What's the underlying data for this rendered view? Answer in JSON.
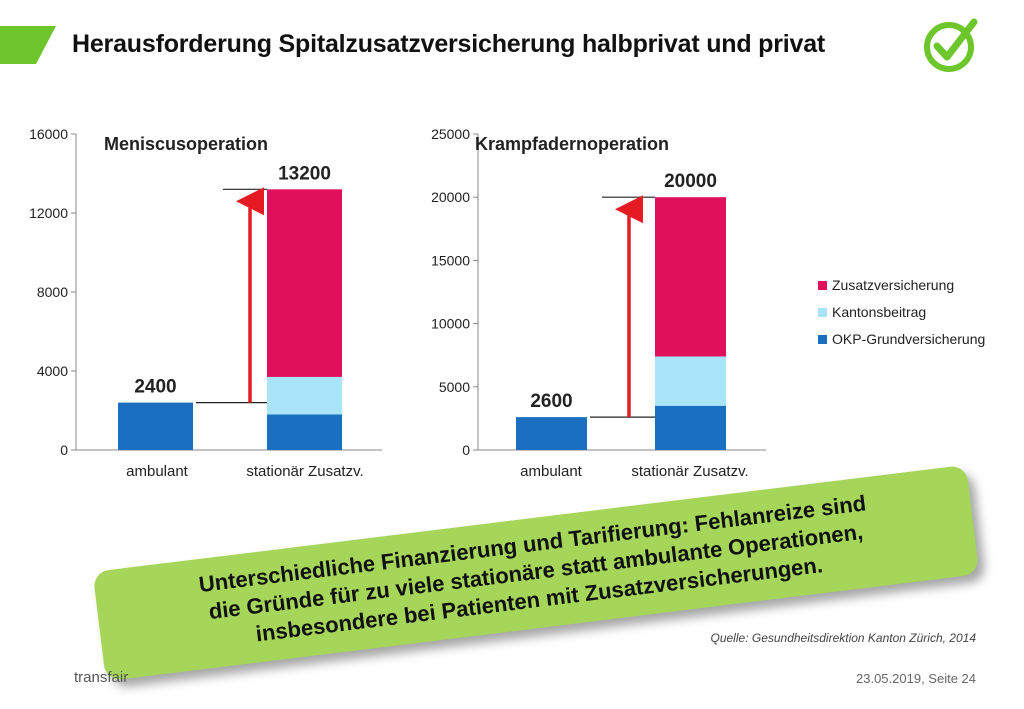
{
  "slide": {
    "title": "Herausforderung Spitalzusatzversicherung halbprivat und privat",
    "callout": [
      "Unterschiedliche Finanzierung und Tarifierung: Fehlanreize sind",
      "die Gründe für zu viele stationäre statt ambulante Operationen,",
      "insbesondere bei Patienten mit Zusatzversicherungen."
    ],
    "source": "Quelle: Gesundheitsdirektion Kanton Zürich, 2014",
    "brand": "transfair",
    "footer": "23.05.2019, Seite 24",
    "icons": [
      "green-tab-icon",
      "checkmark-icon"
    ]
  },
  "colors": {
    "accent_green": "#6cc62c",
    "callout_green": "#a5d65a",
    "Zusatzversicherung": "#e0105a",
    "Kantonsbeitrag": "#a8e4fa",
    "OKP-Grundversicherung": "#1a6fc0",
    "arrow": "#e51b24"
  },
  "chart_data": [
    {
      "type": "bar",
      "stacked": true,
      "title": "Meniscusoperation",
      "categories": [
        "ambulant",
        "stationär  Zusatzv."
      ],
      "series": [
        {
          "name": "OKP-Grundversicherung",
          "values": [
            2400,
            1800
          ]
        },
        {
          "name": "Kantonsbeitrag",
          "values": [
            0,
            1900
          ]
        },
        {
          "name": "Zusatzversicherung",
          "values": [
            0,
            9500
          ]
        }
      ],
      "totals": [
        "2400",
        "13200"
      ],
      "ylim": [
        0,
        16000
      ],
      "yticks": [
        "0",
        "4000",
        "8000",
        "12000",
        "16000"
      ]
    },
    {
      "type": "bar",
      "stacked": true,
      "title": "Krampfadernoperation",
      "categories": [
        "ambulant",
        "stationär Zusatzv."
      ],
      "series": [
        {
          "name": "OKP-Grundversicherung",
          "values": [
            2600,
            3500
          ]
        },
        {
          "name": "Kantonsbeitrag",
          "values": [
            0,
            3900
          ]
        },
        {
          "name": "Zusatzversicherung",
          "values": [
            0,
            12600
          ]
        }
      ],
      "totals": [
        "2600",
        "20000"
      ],
      "ylim": [
        0,
        25000
      ],
      "yticks": [
        "0",
        "5000",
        "10000",
        "15000",
        "20000",
        "25000"
      ]
    }
  ],
  "legend": {
    "position": "right",
    "items": [
      "Zusatzversicherung",
      "Kantonsbeitrag",
      "OKP-Grundversicherung"
    ]
  }
}
